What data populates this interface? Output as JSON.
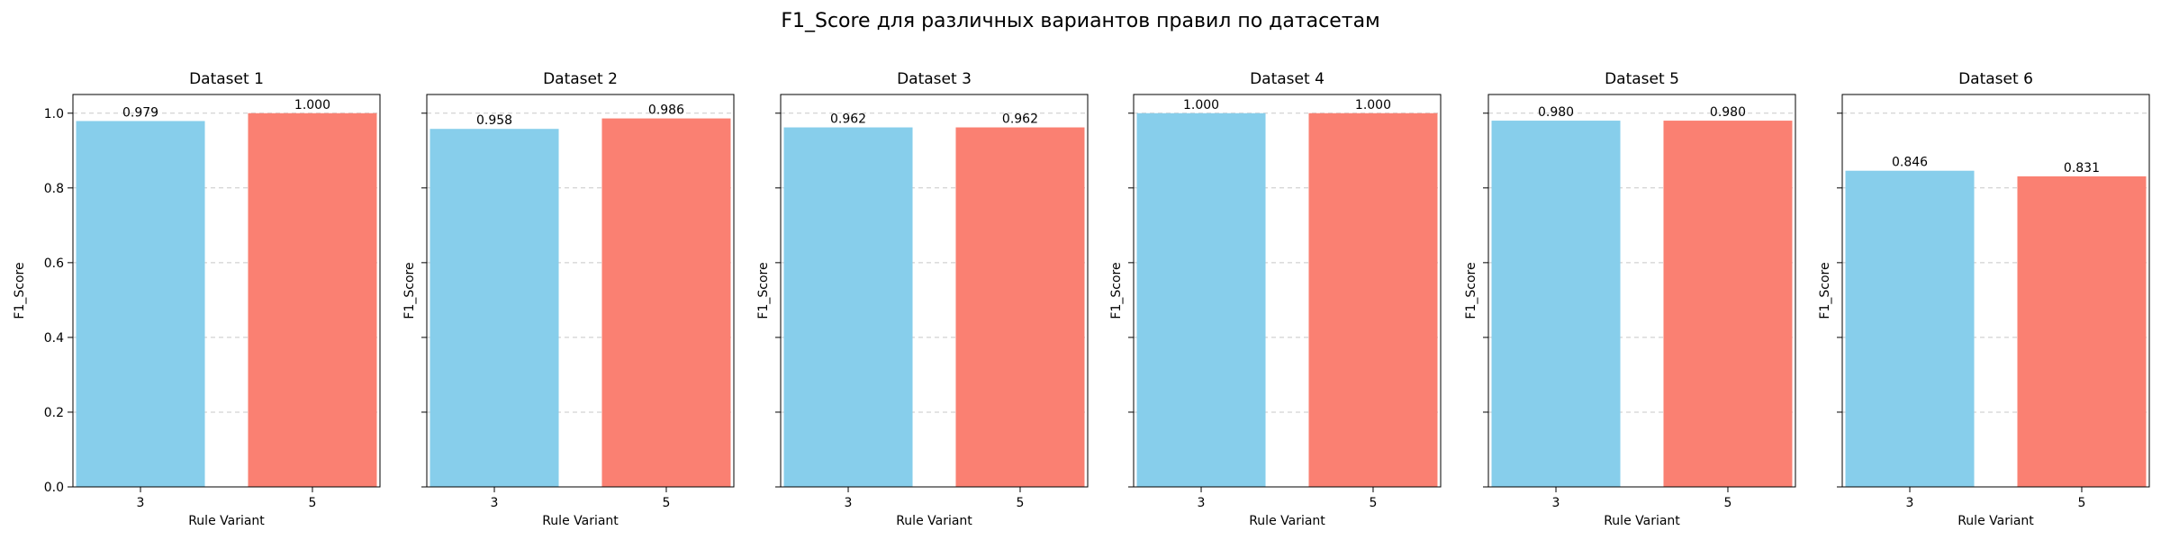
{
  "figure": {
    "suptitle": "F1_Score для различных вариантов правил по датасетам"
  },
  "colors": {
    "variant_3": "#87CEEB",
    "variant_5": "#FA8072",
    "grid": "#c8c8c8",
    "axis": "#000000"
  },
  "chart_data": [
    {
      "type": "bar",
      "title": "Dataset 1",
      "xlabel": "Rule Variant",
      "ylabel": "F1_Score",
      "categories": [
        "3",
        "5"
      ],
      "values": [
        0.979,
        1.0
      ],
      "value_labels": [
        "0.979",
        "1.000"
      ],
      "ylim": [
        0,
        1.05
      ],
      "yticks": [
        "0.0",
        "0.2",
        "0.4",
        "0.6",
        "0.8",
        "1.0"
      ],
      "show_ytick_labels": true,
      "grid": "y-dashed"
    },
    {
      "type": "bar",
      "title": "Dataset 2",
      "xlabel": "Rule Variant",
      "ylabel": "F1_Score",
      "categories": [
        "3",
        "5"
      ],
      "values": [
        0.958,
        0.986
      ],
      "value_labels": [
        "0.958",
        "0.986"
      ],
      "ylim": [
        0,
        1.05
      ],
      "yticks": [
        "0.0",
        "0.2",
        "0.4",
        "0.6",
        "0.8",
        "1.0"
      ],
      "show_ytick_labels": false,
      "grid": "y-dashed"
    },
    {
      "type": "bar",
      "title": "Dataset 3",
      "xlabel": "Rule Variant",
      "ylabel": "F1_Score",
      "categories": [
        "3",
        "5"
      ],
      "values": [
        0.962,
        0.962
      ],
      "value_labels": [
        "0.962",
        "0.962"
      ],
      "ylim": [
        0,
        1.05
      ],
      "yticks": [
        "0.0",
        "0.2",
        "0.4",
        "0.6",
        "0.8",
        "1.0"
      ],
      "show_ytick_labels": false,
      "grid": "y-dashed"
    },
    {
      "type": "bar",
      "title": "Dataset 4",
      "xlabel": "Rule Variant",
      "ylabel": "F1_Score",
      "categories": [
        "3",
        "5"
      ],
      "values": [
        1.0,
        1.0
      ],
      "value_labels": [
        "1.000",
        "1.000"
      ],
      "ylim": [
        0,
        1.05
      ],
      "yticks": [
        "0.0",
        "0.2",
        "0.4",
        "0.6",
        "0.8",
        "1.0"
      ],
      "show_ytick_labels": false,
      "grid": "y-dashed"
    },
    {
      "type": "bar",
      "title": "Dataset 5",
      "xlabel": "Rule Variant",
      "ylabel": "F1_Score",
      "categories": [
        "3",
        "5"
      ],
      "values": [
        0.98,
        0.98
      ],
      "value_labels": [
        "0.980",
        "0.980"
      ],
      "ylim": [
        0,
        1.05
      ],
      "yticks": [
        "0.0",
        "0.2",
        "0.4",
        "0.6",
        "0.8",
        "1.0"
      ],
      "show_ytick_labels": false,
      "grid": "y-dashed"
    },
    {
      "type": "bar",
      "title": "Dataset 6",
      "xlabel": "Rule Variant",
      "ylabel": "F1_Score",
      "categories": [
        "3",
        "5"
      ],
      "values": [
        0.846,
        0.831
      ],
      "value_labels": [
        "0.846",
        "0.831"
      ],
      "ylim": [
        0,
        1.05
      ],
      "yticks": [
        "0.0",
        "0.2",
        "0.4",
        "0.6",
        "0.8",
        "1.0"
      ],
      "show_ytick_labels": false,
      "grid": "y-dashed"
    }
  ]
}
